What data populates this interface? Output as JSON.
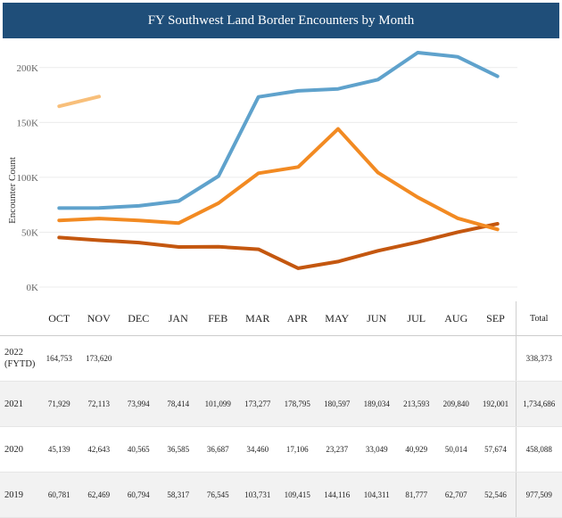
{
  "header": {
    "title": "FY Southwest Land Border Encounters by Month"
  },
  "chart_data": {
    "type": "line",
    "title": "FY Southwest Land Border Encounters by Month",
    "ylabel": "Encounter Count",
    "xlabel": "",
    "categories": [
      "OCT",
      "NOV",
      "DEC",
      "JAN",
      "FEB",
      "MAR",
      "APR",
      "MAY",
      "JUN",
      "JUL",
      "AUG",
      "SEP"
    ],
    "ylim": [
      0,
      225000
    ],
    "yticks": [
      0,
      50000,
      100000,
      150000,
      200000
    ],
    "ytick_labels": [
      "0K",
      "50K",
      "100K",
      "150K",
      "200K"
    ],
    "grid": true,
    "series": [
      {
        "name": "2022 (FYTD)",
        "color": "#f8bf7a",
        "values": [
          164753,
          173620,
          null,
          null,
          null,
          null,
          null,
          null,
          null,
          null,
          null,
          null
        ]
      },
      {
        "name": "2021",
        "color": "#5fa2cc",
        "values": [
          71929,
          72113,
          73994,
          78414,
          101099,
          173277,
          178795,
          180597,
          189034,
          213593,
          209840,
          192001
        ]
      },
      {
        "name": "2020",
        "color": "#c4570f",
        "values": [
          45139,
          42643,
          40565,
          36585,
          36687,
          34460,
          17106,
          23237,
          33049,
          40929,
          50014,
          57674
        ]
      },
      {
        "name": "2019",
        "color": "#f28a22",
        "values": [
          60781,
          62469,
          60794,
          58317,
          76545,
          103731,
          109415,
          144116,
          104311,
          81777,
          62707,
          52546
        ]
      }
    ]
  },
  "table": {
    "total_header": "Total",
    "rows": [
      {
        "year": "2022",
        "sub": "(FYTD)",
        "cells": [
          "164,753",
          "173,620",
          "",
          "",
          "",
          "",
          "",
          "",
          "",
          "",
          "",
          ""
        ],
        "total": "338,373"
      },
      {
        "year": "2021",
        "sub": "",
        "cells": [
          "71,929",
          "72,113",
          "73,994",
          "78,414",
          "101,099",
          "173,277",
          "178,795",
          "180,597",
          "189,034",
          "213,593",
          "209,840",
          "192,001"
        ],
        "total": "1,734,686"
      },
      {
        "year": "2020",
        "sub": "",
        "cells": [
          "45,139",
          "42,643",
          "40,565",
          "36,585",
          "36,687",
          "34,460",
          "17,106",
          "23,237",
          "33,049",
          "40,929",
          "50,014",
          "57,674"
        ],
        "total": "458,088"
      },
      {
        "year": "2019",
        "sub": "",
        "cells": [
          "60,781",
          "62,469",
          "60,794",
          "58,317",
          "76,545",
          "103,731",
          "109,415",
          "144,116",
          "104,311",
          "81,777",
          "62,707",
          "52,546"
        ],
        "total": "977,509"
      }
    ]
  }
}
